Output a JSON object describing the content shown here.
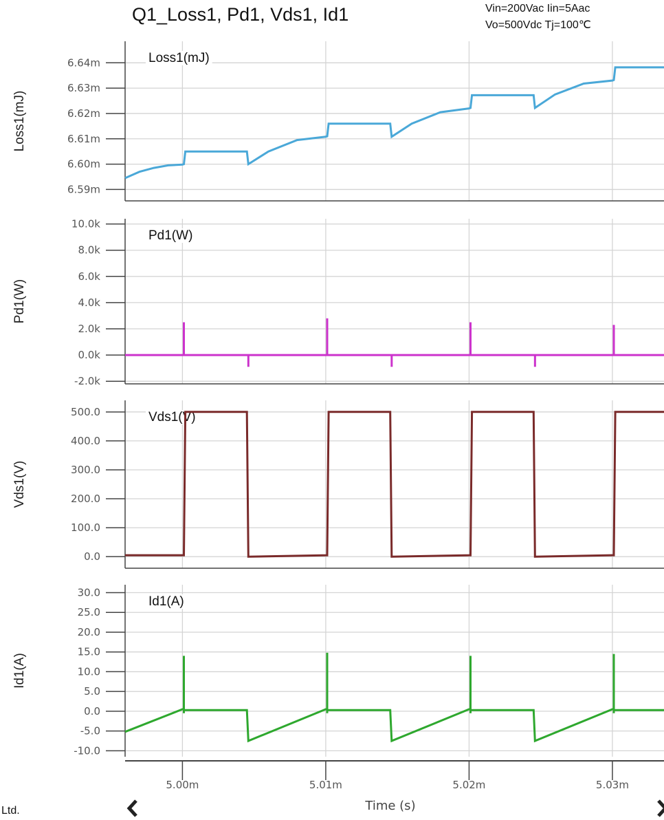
{
  "title": "Q1_Loss1, Pd1, Vds1, Id1",
  "conditions": [
    "Vin=200Vac Iin=5Aac",
    "Vo=500Vdc Tj=100℃"
  ],
  "corner_text": "Ltd.",
  "chart_data": {
    "type": "line",
    "x_axis": {
      "label": "Time (s)",
      "range": [
        4.996,
        5.0336
      ],
      "ticks": [
        5.0,
        5.01,
        5.02,
        5.03
      ],
      "tick_labels": [
        "5.00m",
        "5.01m",
        "5.02m",
        "5.03m"
      ],
      "unit": "ms"
    },
    "grid": true,
    "panels": [
      {
        "id": "loss",
        "ylabel": "Loss1(mJ)",
        "series_name": "Loss1(mJ)",
        "color": "#4aa8d8",
        "ylim": [
          6.5855,
          6.6485
        ],
        "ticks": [
          6.64,
          6.63,
          6.62,
          6.61,
          6.6,
          6.59
        ],
        "tick_labels": [
          "6.64m",
          "6.63m",
          "6.62m",
          "6.61m",
          "6.60m",
          "6.59m"
        ],
        "points": [
          [
            4.996,
            6.5945
          ],
          [
            4.997,
            6.597
          ],
          [
            4.998,
            6.5985
          ],
          [
            4.999,
            6.5995
          ],
          [
            5.0,
            6.5998
          ],
          [
            5.0001,
            6.6
          ],
          [
            5.0002,
            6.605
          ],
          [
            5.0045,
            6.605
          ],
          [
            5.0046,
            6.6
          ],
          [
            5.006,
            6.605
          ],
          [
            5.008,
            6.6095
          ],
          [
            5.01,
            6.6108
          ],
          [
            5.0101,
            6.611
          ],
          [
            5.0102,
            6.616
          ],
          [
            5.0145,
            6.616
          ],
          [
            5.0146,
            6.6108
          ],
          [
            5.016,
            6.616
          ],
          [
            5.018,
            6.6205
          ],
          [
            5.02,
            6.622
          ],
          [
            5.0201,
            6.6222
          ],
          [
            5.0202,
            6.6272
          ],
          [
            5.0245,
            6.6272
          ],
          [
            5.0246,
            6.6222
          ],
          [
            5.026,
            6.6275
          ],
          [
            5.028,
            6.6318
          ],
          [
            5.03,
            6.633
          ],
          [
            5.0301,
            6.6332
          ],
          [
            5.0302,
            6.6382
          ],
          [
            5.0336,
            6.6382
          ]
        ]
      },
      {
        "id": "pd",
        "ylabel": "Pd1(W)",
        "series_name": "Pd1(W)",
        "color": "#cc33cc",
        "ylim": [
          -2200,
          10400
        ],
        "ticks": [
          10000,
          8000,
          6000,
          4000,
          2000,
          0,
          -2000
        ],
        "tick_labels": [
          "10.0k",
          "8.0k",
          "6.0k",
          "4.0k",
          "2.0k",
          "0.0k",
          "-2.0k"
        ],
        "baseline": 0,
        "spikes": [
          [
            5.0001,
            2500
          ],
          [
            5.0046,
            -900
          ],
          [
            5.0101,
            2800
          ],
          [
            5.0146,
            -900
          ],
          [
            5.0201,
            2500
          ],
          [
            5.0246,
            -900
          ],
          [
            5.0301,
            2300
          ]
        ]
      },
      {
        "id": "vds",
        "ylabel": "Vds1(V)",
        "series_name": "Vds1(V)",
        "color": "#7a2a2a",
        "ylim": [
          -40,
          540
        ],
        "ticks": [
          500,
          400,
          300,
          200,
          100,
          0
        ],
        "tick_labels": [
          "500.0",
          "400.0",
          "300.0",
          "200.0",
          "100.0",
          "0.0"
        ],
        "points": [
          [
            4.996,
            5
          ],
          [
            5.0001,
            5
          ],
          [
            5.0002,
            500
          ],
          [
            5.0045,
            500
          ],
          [
            5.0046,
            0
          ],
          [
            5.0101,
            5
          ],
          [
            5.0102,
            500
          ],
          [
            5.0145,
            500
          ],
          [
            5.0146,
            0
          ],
          [
            5.0201,
            5
          ],
          [
            5.0202,
            500
          ],
          [
            5.0245,
            500
          ],
          [
            5.0246,
            0
          ],
          [
            5.0301,
            5
          ],
          [
            5.0302,
            500
          ],
          [
            5.0336,
            500
          ]
        ]
      },
      {
        "id": "id",
        "ylabel": "Id1(A)",
        "series_name": "Id1(A)",
        "color": "#2ea82e",
        "ylim": [
          -11.5,
          32
        ],
        "ticks": [
          30,
          25,
          20,
          15,
          10,
          5,
          0,
          -5,
          -10
        ],
        "tick_labels": [
          "30.0",
          "25.0",
          "20.0",
          "15.0",
          "10.0",
          "5.0",
          "0.0",
          "-5.0",
          "-10.0"
        ],
        "points": [
          [
            4.996,
            -5.2
          ],
          [
            5.0,
            0.5
          ],
          [
            5.0001,
            0.5
          ],
          [
            5.0001,
            14.0
          ],
          [
            5.0001,
            -0.5
          ],
          [
            5.0001,
            0.3
          ],
          [
            5.0045,
            0.3
          ],
          [
            5.0046,
            -7.5
          ],
          [
            5.01,
            0.5
          ],
          [
            5.0101,
            0.5
          ],
          [
            5.0101,
            14.8
          ],
          [
            5.0101,
            -0.5
          ],
          [
            5.0101,
            0.3
          ],
          [
            5.0145,
            0.3
          ],
          [
            5.0146,
            -7.5
          ],
          [
            5.02,
            0.5
          ],
          [
            5.0201,
            0.5
          ],
          [
            5.0201,
            14.0
          ],
          [
            5.0201,
            -0.5
          ],
          [
            5.0201,
            0.3
          ],
          [
            5.0245,
            0.3
          ],
          [
            5.0246,
            -7.5
          ],
          [
            5.03,
            0.5
          ],
          [
            5.0301,
            0.5
          ],
          [
            5.0301,
            14.5
          ],
          [
            5.0301,
            -0.5
          ],
          [
            5.0301,
            0.3
          ],
          [
            5.0336,
            0.3
          ]
        ]
      }
    ]
  }
}
